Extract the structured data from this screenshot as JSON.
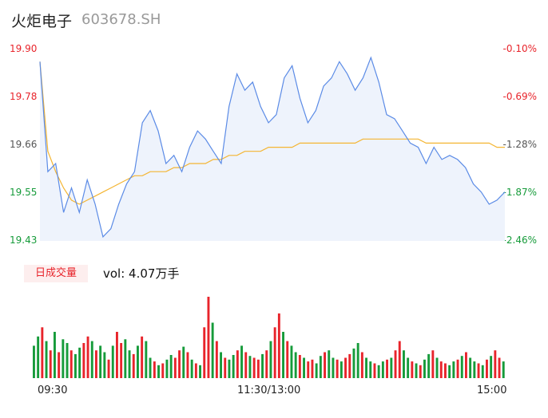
{
  "header": {
    "name": "火炬电子",
    "code": "603678.SH"
  },
  "volume": {
    "tag": "日成交量",
    "text": "vol: 4.07万手"
  },
  "time_labels": [
    "09:30",
    "11:30/13:00",
    "15:00"
  ],
  "colors": {
    "price": "#5b8be6",
    "avg": "#f4b532",
    "up": "#e8242b",
    "down": "#169b3a",
    "fill": "#eef3fc"
  },
  "chart_data": [
    {
      "type": "line",
      "y_left_ticks": [
        "19.90",
        "19.78",
        "19.66",
        "19.55",
        "19.43"
      ],
      "y_right_ticks": [
        "-0.10%",
        "-0.69%",
        "-1.28%",
        "-1.87%",
        "-2.46%"
      ],
      "ylim": [
        19.43,
        19.9
      ],
      "x_labels": [
        "09:30",
        "11:30/13:00",
        "15:00"
      ],
      "series": [
        {
          "values": [
            19.87,
            19.6,
            19.62,
            19.5,
            19.56,
            19.5,
            19.58,
            19.52,
            19.44,
            19.46,
            19.52,
            19.57,
            19.6,
            19.72,
            19.75,
            19.7,
            19.62,
            19.64,
            19.6,
            19.66,
            19.7,
            19.68,
            19.65,
            19.62,
            19.76,
            19.84,
            19.8,
            19.82,
            19.76,
            19.72,
            19.74,
            19.83,
            19.86,
            19.78,
            19.72,
            19.75,
            19.81,
            19.83,
            19.87,
            19.84,
            19.8,
            19.83,
            19.88,
            19.82,
            19.74,
            19.73,
            19.7,
            19.67,
            19.66,
            19.62,
            19.66,
            19.63,
            19.64,
            19.63,
            19.61,
            19.57,
            19.55,
            19.52,
            19.53,
            19.55
          ]
        },
        {
          "values": [
            19.87,
            19.65,
            19.6,
            19.56,
            19.53,
            19.52,
            19.53,
            19.54,
            19.55,
            19.56,
            19.57,
            19.58,
            19.59,
            19.59,
            19.6,
            19.6,
            19.6,
            19.61,
            19.61,
            19.62,
            19.62,
            19.62,
            19.63,
            19.63,
            19.64,
            19.64,
            19.65,
            19.65,
            19.65,
            19.66,
            19.66,
            19.66,
            19.66,
            19.67,
            19.67,
            19.67,
            19.67,
            19.67,
            19.67,
            19.67,
            19.67,
            19.68,
            19.68,
            19.68,
            19.68,
            19.68,
            19.68,
            19.68,
            19.68,
            19.67,
            19.67,
            19.67,
            19.67,
            19.67,
            19.67,
            19.67,
            19.67,
            19.67,
            19.66,
            19.66
          ]
        }
      ]
    },
    {
      "type": "bar",
      "values": [
        35,
        45,
        55,
        40,
        30,
        50,
        28,
        42,
        38,
        30,
        26,
        33,
        38,
        45,
        40,
        30,
        35,
        28,
        20,
        35,
        50,
        38,
        42,
        30,
        26,
        35,
        45,
        40,
        22,
        18,
        14,
        16,
        20,
        25,
        22,
        30,
        34,
        28,
        20,
        16,
        14,
        55,
        88,
        60,
        40,
        28,
        22,
        20,
        25,
        30,
        35,
        28,
        24,
        22,
        20,
        26,
        30,
        40,
        55,
        70,
        50,
        40,
        35,
        28,
        25,
        22,
        18,
        20,
        16,
        24,
        28,
        30,
        22,
        20,
        18,
        22,
        26,
        32,
        38,
        28,
        22,
        18,
        16,
        14,
        18,
        20,
        22,
        30,
        40,
        30,
        22,
        18,
        16,
        14,
        20,
        26,
        30,
        22,
        18,
        16,
        14,
        18,
        20,
        24,
        28,
        22,
        18,
        16,
        14,
        20,
        24,
        30,
        22,
        18
      ],
      "up": [
        0,
        0,
        1,
        0,
        1,
        0,
        1,
        0,
        0,
        1,
        0,
        0,
        1,
        1,
        0,
        1,
        0,
        0,
        1,
        0,
        1,
        1,
        0,
        0,
        1,
        0,
        1,
        0,
        0,
        1,
        0,
        1,
        0,
        0,
        1,
        1,
        0,
        1,
        0,
        1,
        0,
        1,
        1,
        0,
        1,
        0,
        1,
        0,
        0,
        1,
        0,
        1,
        0,
        1,
        1,
        0,
        1,
        0,
        1,
        1,
        0,
        1,
        0,
        0,
        1,
        0,
        1,
        1,
        0,
        0,
        1,
        0,
        0,
        1,
        0,
        1,
        1,
        0,
        0,
        1,
        0,
        0,
        1,
        0,
        0,
        1,
        0,
        1,
        1,
        0,
        0,
        1,
        0,
        1,
        0,
        0,
        1,
        0,
        1,
        1,
        0,
        0,
        1,
        0,
        1,
        0,
        0,
        1,
        0,
        1,
        0,
        1,
        1,
        0
      ]
    }
  ]
}
